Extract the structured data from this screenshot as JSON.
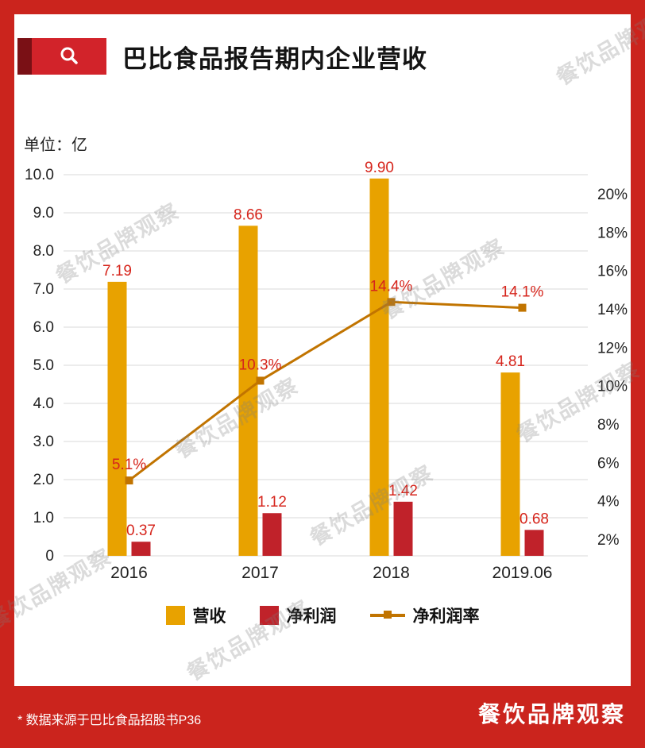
{
  "page": {
    "title": "巴比食品报告期内企业营收",
    "unit_label": "单位：亿",
    "source_note": "* 数据来源于巴比食品招股书P36",
    "brand_logo": "餐饮品牌观察",
    "watermark_text": "餐饮品牌观察"
  },
  "colors": {
    "background": "#cb241d",
    "card": "#ffffff",
    "tag_dark": "#7a1015",
    "tag_red": "#d2232a",
    "value_label": "#d6251c",
    "axis_text": "#1f1f1f",
    "grid": "#dadada"
  },
  "chart_data": {
    "type": "bar",
    "combo": "dual-axis bar + line",
    "title": "巴比食品报告期内企业营收",
    "unit": "亿",
    "categories": [
      "2016",
      "2017",
      "2018",
      "2019.06"
    ],
    "series": [
      {
        "name": "营收",
        "type": "bar",
        "axis": "left",
        "color": "#e8a200",
        "values": [
          7.19,
          8.66,
          9.9,
          4.81
        ],
        "labels": [
          "7.19",
          "8.66",
          "9.90",
          "4.81"
        ]
      },
      {
        "name": "净利润",
        "type": "bar",
        "axis": "left",
        "color": "#c0222a",
        "values": [
          0.37,
          1.12,
          1.42,
          0.68
        ],
        "labels": [
          "0.37",
          "1.12",
          "1.42",
          "0.68"
        ]
      },
      {
        "name": "净利润率",
        "type": "line",
        "axis": "right",
        "color": "#c17400",
        "values": [
          5.1,
          10.3,
          14.4,
          14.1
        ],
        "labels": [
          "5.1%",
          "10.3%",
          "14.4%",
          "14.1%"
        ]
      }
    ],
    "left_axis": {
      "min": 0,
      "max": 10,
      "step": 1,
      "tick_labels": [
        "10.0",
        "9.0",
        "8.0",
        "7.0",
        "6.0",
        "5.0",
        "4.0",
        "3.0",
        "2.0",
        "1.0",
        "0"
      ]
    },
    "right_axis": {
      "min": 2,
      "max": 20,
      "step": 2,
      "tick_labels": [
        "20%",
        "18%",
        "16%",
        "14%",
        "12%",
        "10%",
        "8%",
        "6%",
        "4%",
        "2%"
      ]
    },
    "grid": true,
    "legend_position": "bottom"
  }
}
